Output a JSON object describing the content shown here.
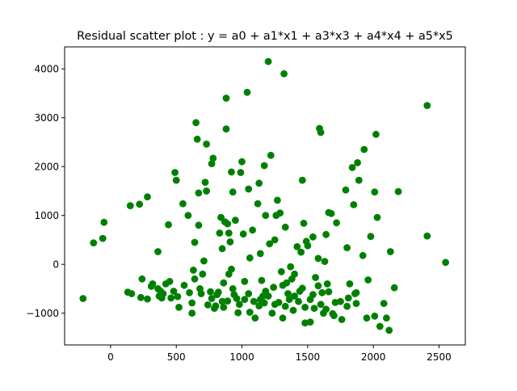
{
  "chart_data": {
    "type": "scatter",
    "title": "Residual scatter plot :  y = a0 + a1*x1 + a3*x3 + a4*x4 + a5*x5",
    "xlabel": "",
    "ylabel": "",
    "xlim": [
      -350,
      2700
    ],
    "ylim": [
      -1650,
      4450
    ],
    "xticks": [
      0,
      500,
      1000,
      1500,
      2000,
      2500
    ],
    "yticks": [
      -1000,
      0,
      1000,
      2000,
      3000,
      4000
    ],
    "grid": false,
    "marker_color": "#008000",
    "points": [
      [
        -210,
        -700
      ],
      [
        -130,
        440
      ],
      [
        -60,
        530
      ],
      [
        -50,
        860
      ],
      [
        130,
        -570
      ],
      [
        150,
        1200
      ],
      [
        160,
        -600
      ],
      [
        220,
        1230
      ],
      [
        230,
        -680
      ],
      [
        240,
        -300
      ],
      [
        280,
        1380
      ],
      [
        280,
        -710
      ],
      [
        310,
        -450
      ],
      [
        320,
        -400
      ],
      [
        360,
        260
      ],
      [
        360,
        -500
      ],
      [
        370,
        -650
      ],
      [
        380,
        -550
      ],
      [
        390,
        -690
      ],
      [
        400,
        -600
      ],
      [
        420,
        -400
      ],
      [
        440,
        810
      ],
      [
        450,
        -350
      ],
      [
        460,
        -690
      ],
      [
        480,
        -550
      ],
      [
        490,
        1880
      ],
      [
        500,
        1720
      ],
      [
        510,
        -660
      ],
      [
        520,
        -880
      ],
      [
        550,
        1240
      ],
      [
        560,
        -430
      ],
      [
        590,
        1000
      ],
      [
        600,
        -580
      ],
      [
        620,
        -790
      ],
      [
        620,
        -1000
      ],
      [
        630,
        -120
      ],
      [
        640,
        450
      ],
      [
        640,
        -300
      ],
      [
        650,
        2900
      ],
      [
        660,
        2560
      ],
      [
        670,
        1460
      ],
      [
        670,
        800
      ],
      [
        680,
        -500
      ],
      [
        690,
        -600
      ],
      [
        700,
        -200
      ],
      [
        710,
        70
      ],
      [
        720,
        1680
      ],
      [
        730,
        2460
      ],
      [
        730,
        1500
      ],
      [
        740,
        -830
      ],
      [
        760,
        -560
      ],
      [
        770,
        2060
      ],
      [
        780,
        2170
      ],
      [
        790,
        -900
      ],
      [
        810,
        -620
      ],
      [
        820,
        -570
      ],
      [
        830,
        640
      ],
      [
        840,
        960
      ],
      [
        850,
        320
      ],
      [
        860,
        -380
      ],
      [
        860,
        -880
      ],
      [
        870,
        870
      ],
      [
        880,
        3400
      ],
      [
        880,
        2770
      ],
      [
        890,
        830
      ],
      [
        900,
        640
      ],
      [
        900,
        -200
      ],
      [
        910,
        460
      ],
      [
        920,
        1890
      ],
      [
        920,
        -100
      ],
      [
        930,
        1480
      ],
      [
        930,
        -500
      ],
      [
        950,
        900
      ],
      [
        960,
        -700
      ],
      [
        970,
        -990
      ],
      [
        990,
        1880
      ],
      [
        1000,
        2100
      ],
      [
        1010,
        620
      ],
      [
        1020,
        -350
      ],
      [
        1040,
        3520
      ],
      [
        1050,
        1540
      ],
      [
        1050,
        -600
      ],
      [
        1060,
        130
      ],
      [
        1080,
        700
      ],
      [
        1100,
        -1100
      ],
      [
        1120,
        1240
      ],
      [
        1130,
        1660
      ],
      [
        1140,
        220
      ],
      [
        1150,
        -330
      ],
      [
        1160,
        -650
      ],
      [
        1170,
        2020
      ],
      [
        1180,
        1000
      ],
      [
        1200,
        4150
      ],
      [
        1210,
        420
      ],
      [
        1220,
        2230
      ],
      [
        1240,
        -470
      ],
      [
        1250,
        500
      ],
      [
        1260,
        1000
      ],
      [
        1270,
        1310
      ],
      [
        1290,
        1050
      ],
      [
        1300,
        -150
      ],
      [
        1310,
        -1100
      ],
      [
        1320,
        3900
      ],
      [
        1330,
        760
      ],
      [
        1340,
        -380
      ],
      [
        1350,
        -600
      ],
      [
        1370,
        -50
      ],
      [
        1380,
        -300
      ],
      [
        1400,
        -200
      ],
      [
        1420,
        360
      ],
      [
        1440,
        -550
      ],
      [
        1450,
        250
      ],
      [
        1460,
        1720
      ],
      [
        1470,
        840
      ],
      [
        1480,
        -1200
      ],
      [
        1490,
        470
      ],
      [
        1500,
        380
      ],
      [
        1520,
        -1180
      ],
      [
        1540,
        560
      ],
      [
        1560,
        -270
      ],
      [
        1580,
        120
      ],
      [
        1590,
        2780
      ],
      [
        1600,
        2700
      ],
      [
        1610,
        -580
      ],
      [
        1620,
        -1000
      ],
      [
        1630,
        60
      ],
      [
        1640,
        610
      ],
      [
        1650,
        -400
      ],
      [
        1660,
        1060
      ],
      [
        1680,
        1040
      ],
      [
        1700,
        -1050
      ],
      [
        1720,
        850
      ],
      [
        1760,
        -1130
      ],
      [
        1790,
        1520
      ],
      [
        1800,
        340
      ],
      [
        1820,
        -400
      ],
      [
        1840,
        1980
      ],
      [
        1850,
        1220
      ],
      [
        1860,
        -600
      ],
      [
        1870,
        -800
      ],
      [
        1880,
        2080
      ],
      [
        1890,
        1720
      ],
      [
        1920,
        180
      ],
      [
        1930,
        2350
      ],
      [
        1960,
        -320
      ],
      [
        1980,
        570
      ],
      [
        2010,
        1480
      ],
      [
        2020,
        2660
      ],
      [
        2030,
        960
      ],
      [
        2050,
        -1270
      ],
      [
        2080,
        -800
      ],
      [
        2100,
        -1100
      ],
      [
        2120,
        -1350
      ],
      [
        2130,
        260
      ],
      [
        2160,
        -480
      ],
      [
        2190,
        1490
      ],
      [
        2410,
        3250
      ],
      [
        2410,
        580
      ],
      [
        2550,
        40
      ],
      [
        770,
        -700
      ],
      [
        800,
        -850
      ],
      [
        850,
        -760
      ],
      [
        890,
        -750
      ],
      [
        940,
        -620
      ],
      [
        980,
        -820
      ],
      [
        1020,
        -720
      ],
      [
        1060,
        -980
      ],
      [
        1090,
        -760
      ],
      [
        1130,
        -850
      ],
      [
        1170,
        -790
      ],
      [
        1200,
        -650
      ],
      [
        1230,
        -1000
      ],
      [
        1280,
        -780
      ],
      [
        1330,
        -860
      ],
      [
        1360,
        -720
      ],
      [
        1390,
        -940
      ],
      [
        1430,
        -760
      ],
      [
        1480,
        -880
      ],
      [
        1520,
        -720
      ],
      [
        1550,
        -900
      ],
      [
        1600,
        -820
      ],
      [
        1640,
        -920
      ],
      [
        1690,
        -1010
      ],
      [
        1750,
        -760
      ],
      [
        1800,
        -860
      ],
      [
        1810,
        -690
      ],
      [
        1870,
        -580
      ],
      [
        1950,
        -1100
      ],
      [
        2010,
        -1060
      ],
      [
        1140,
        -720
      ],
      [
        1180,
        -550
      ],
      [
        1250,
        -820
      ],
      [
        1310,
        -430
      ],
      [
        1400,
        -650
      ],
      [
        1460,
        -490
      ],
      [
        1540,
        -620
      ],
      [
        1580,
        -440
      ],
      [
        1660,
        -560
      ],
      [
        1710,
        -780
      ]
    ]
  }
}
